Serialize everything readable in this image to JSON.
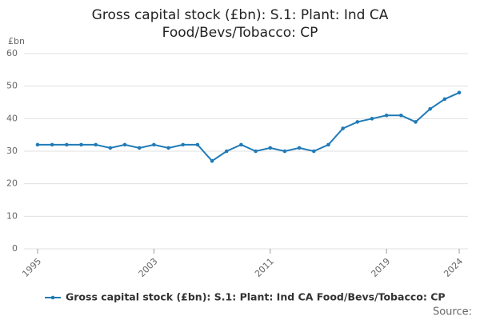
{
  "chart_data": {
    "type": "line",
    "title": "Gross capital stock (£bn): S.1: Plant: Ind CA Food/Bevs/Tobacco: CP",
    "ylabel": "£bn",
    "source": "Source:",
    "x": [
      1995,
      1996,
      1997,
      1998,
      1999,
      2000,
      2001,
      2002,
      2003,
      2004,
      2005,
      2006,
      2007,
      2008,
      2009,
      2010,
      2011,
      2012,
      2013,
      2014,
      2015,
      2016,
      2017,
      2018,
      2019,
      2020,
      2021,
      2022,
      2023,
      2024
    ],
    "series": [
      {
        "name": "Gross capital stock (£bn): S.1: Plant: Ind CA Food/Bevs/Tobacco: CP",
        "color": "#1f7ab7",
        "values": [
          32,
          32,
          32,
          32,
          32,
          31,
          32,
          31,
          32,
          31,
          32,
          32,
          27,
          30,
          32,
          30,
          31,
          30,
          31,
          30,
          32,
          37,
          39,
          40,
          41,
          41,
          39,
          43,
          46,
          48
        ]
      }
    ],
    "xlim": [
      1995,
      2024
    ],
    "xticks": [
      1995,
      2003,
      2011,
      2019,
      2024
    ],
    "ylim": [
      0,
      60
    ],
    "yticks": [
      0,
      10,
      20,
      30,
      40,
      50,
      60
    ],
    "grid": true
  }
}
